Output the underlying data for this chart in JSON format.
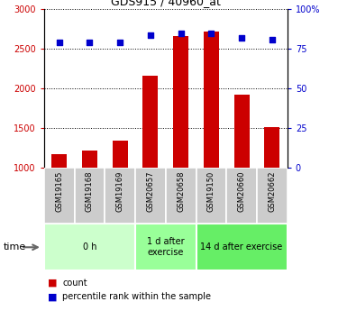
{
  "title": "GDS915 / 40960_at",
  "samples": [
    "GSM19165",
    "GSM19168",
    "GSM19169",
    "GSM20657",
    "GSM20658",
    "GSM19150",
    "GSM20660",
    "GSM20662"
  ],
  "counts": [
    1170,
    1220,
    1340,
    2160,
    2660,
    2720,
    1920,
    1510
  ],
  "percentiles": [
    79,
    79,
    79,
    84,
    85,
    85,
    82,
    81
  ],
  "groups": [
    {
      "label": "0 h",
      "start": 0,
      "end": 3,
      "color": "#ccffcc"
    },
    {
      "label": "1 d after\nexercise",
      "start": 3,
      "end": 5,
      "color": "#99ff99"
    },
    {
      "label": "14 d after exercise",
      "start": 5,
      "end": 8,
      "color": "#66ee66"
    }
  ],
  "ylim_left": [
    1000,
    3000
  ],
  "ylim_right": [
    0,
    100
  ],
  "yticks_left": [
    1000,
    1500,
    2000,
    2500,
    3000
  ],
  "yticks_right": [
    0,
    25,
    50,
    75,
    100
  ],
  "bar_color": "#cc0000",
  "dot_color": "#0000cc",
  "bar_width": 0.5,
  "background_color": "#ffffff",
  "plot_bg": "#ffffff",
  "left_tick_color": "#cc0000",
  "right_tick_color": "#0000cc",
  "time_label": "time",
  "legend_count": "count",
  "legend_percentile": "percentile rank within the sample",
  "group_border_color": "#aaaaaa",
  "sample_box_color": "#cccccc"
}
